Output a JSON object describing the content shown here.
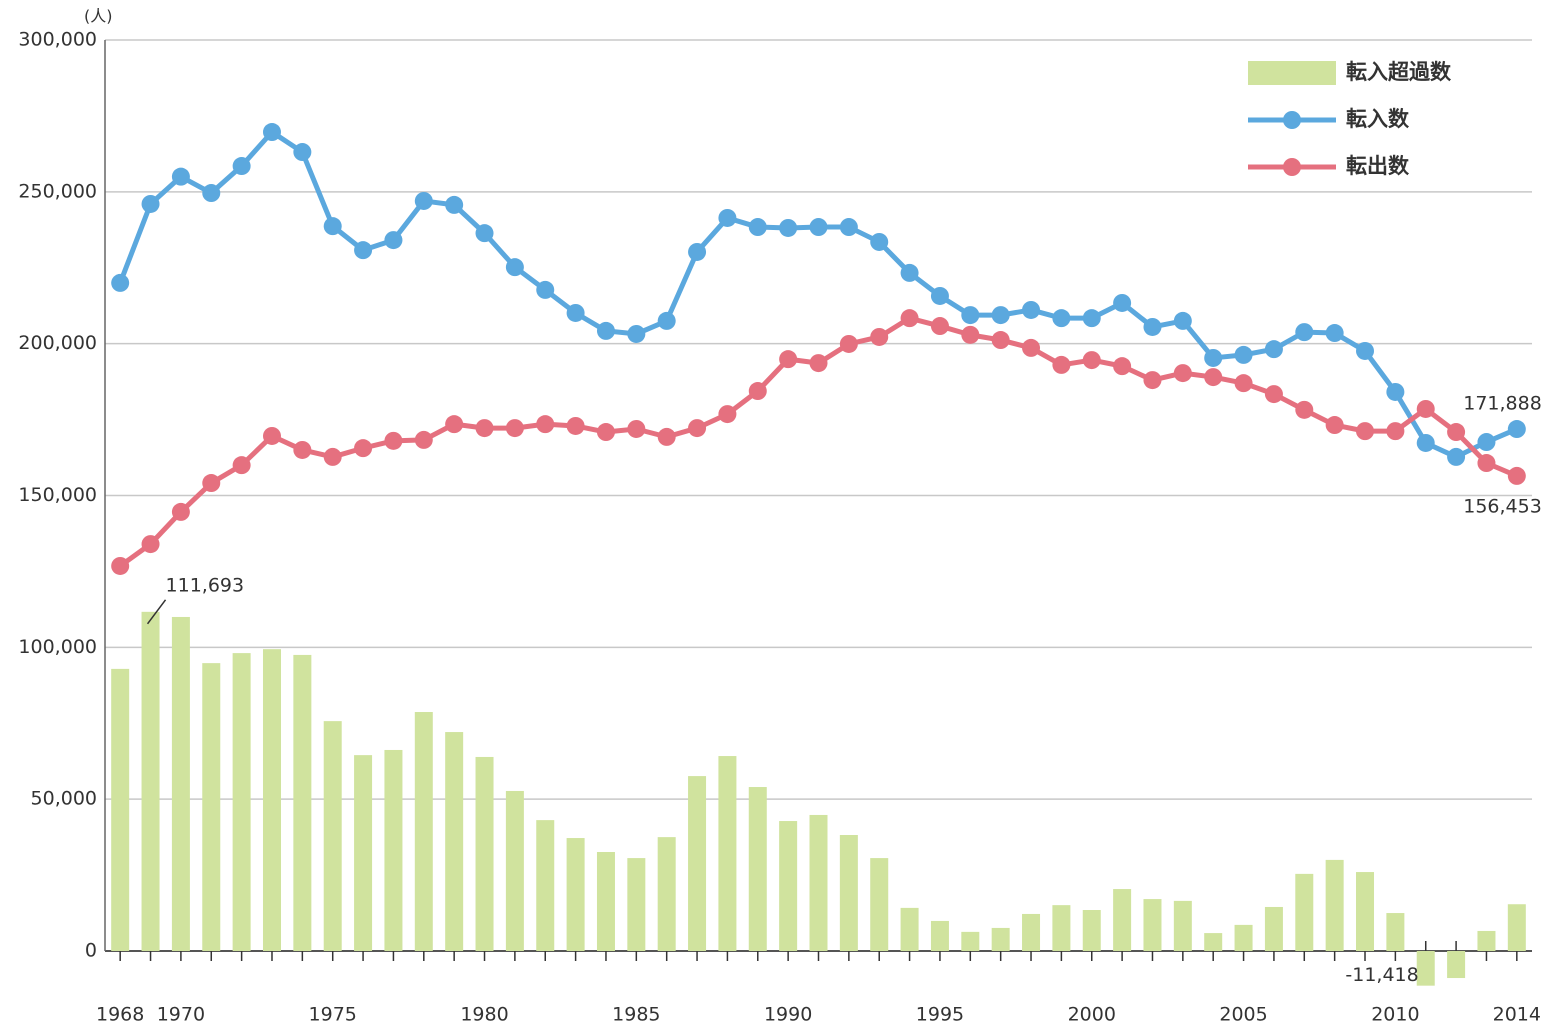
{
  "chart_data": {
    "type": "bar",
    "y_label": "(人)",
    "legend": "upper right",
    "grid": true,
    "x": [
      1968,
      1969,
      1970,
      1971,
      1972,
      1973,
      1974,
      1975,
      1976,
      1977,
      1978,
      1979,
      1980,
      1981,
      1982,
      1983,
      1984,
      1985,
      1986,
      1987,
      1988,
      1989,
      1990,
      1991,
      1992,
      1993,
      1994,
      1995,
      1996,
      1997,
      1998,
      1999,
      2000,
      2001,
      2002,
      2003,
      2004,
      2005,
      2006,
      2007,
      2008,
      2009,
      2010,
      2011,
      2012,
      2013,
      2014
    ],
    "xlim": [
      1967.5,
      2014.5
    ],
    "xticks": [
      1968,
      1970,
      1975,
      1980,
      1985,
      1990,
      1995,
      2000,
      2005,
      2010,
      2014
    ],
    "ylim": [
      0,
      300000
    ],
    "yticks": [
      0,
      {
        "value": 50000,
        "label": "50,000"
      },
      {
        "value": 100000,
        "label": "100,000"
      },
      {
        "value": 150000,
        "label": "150,000"
      },
      {
        "value": 200000,
        "label": "200,000"
      },
      {
        "value": 250000,
        "label": "250,000"
      },
      {
        "value": 300000,
        "label": "300,000"
      }
    ],
    "series": [
      {
        "name": "転入超過数",
        "type": "bar",
        "color": "#d0e39e",
        "values": [
          92900,
          111693,
          110000,
          94800,
          98100,
          99400,
          97500,
          75700,
          64500,
          66200,
          78700,
          72100,
          63900,
          52700,
          43100,
          37200,
          32600,
          30600,
          37500,
          57600,
          64200,
          54000,
          42800,
          44800,
          38200,
          30600,
          14200,
          9900,
          6300,
          7600,
          12200,
          15100,
          13500,
          20400,
          17100,
          16500,
          5900,
          8600,
          14500,
          25400,
          30000,
          26000,
          12500,
          -11418,
          -8900,
          6600,
          15400
        ],
        "value_labels": [
          null,
          "111,693",
          null,
          null,
          null,
          null,
          null,
          null,
          null,
          null,
          null,
          null,
          null,
          null,
          null,
          null,
          null,
          null,
          null,
          null,
          null,
          null,
          null,
          null,
          null,
          null,
          null,
          null,
          null,
          null,
          null,
          null,
          null,
          null,
          null,
          null,
          null,
          null,
          null,
          null,
          null,
          null,
          null,
          "-11,418",
          null,
          null,
          null
        ]
      },
      {
        "name": "転入数",
        "type": "line",
        "color": "#5ba8de",
        "values": [
          220000,
          246000,
          255000,
          249600,
          258500,
          269700,
          263100,
          238700,
          230800,
          234100,
          247000,
          245700,
          236400,
          225200,
          217700,
          210100,
          204200,
          203200,
          207500,
          230200,
          241400,
          238400,
          238100,
          238400,
          238400,
          233500,
          223300,
          215700,
          209400,
          209400,
          211100,
          208400,
          208400,
          213400,
          205500,
          207500,
          195300,
          196300,
          198200,
          203800,
          203500,
          197600,
          184100,
          167300,
          162700,
          167600,
          171888
        ],
        "value_labels": [
          null,
          null,
          null,
          null,
          null,
          null,
          null,
          null,
          null,
          null,
          null,
          null,
          null,
          null,
          null,
          null,
          null,
          null,
          null,
          null,
          null,
          null,
          null,
          null,
          null,
          null,
          null,
          null,
          null,
          null,
          null,
          null,
          null,
          null,
          null,
          null,
          null,
          null,
          null,
          null,
          null,
          null,
          null,
          null,
          null,
          null,
          "171,888"
        ]
      },
      {
        "name": "転出数",
        "type": "line",
        "color": "#e5707f",
        "values": [
          126800,
          134000,
          144600,
          154100,
          160000,
          169600,
          165000,
          162700,
          165600,
          168000,
          168300,
          173500,
          172200,
          172200,
          173500,
          172900,
          170900,
          171900,
          169300,
          172200,
          176800,
          184400,
          194900,
          193600,
          199900,
          202200,
          208400,
          205800,
          202900,
          201200,
          198600,
          193000,
          194600,
          192600,
          188000,
          190300,
          189000,
          187000,
          183400,
          178200,
          173200,
          171200,
          171200,
          178500,
          170900,
          160700,
          156453
        ],
        "value_labels": [
          null,
          null,
          null,
          null,
          null,
          null,
          null,
          null,
          null,
          null,
          null,
          null,
          null,
          null,
          null,
          null,
          null,
          null,
          null,
          null,
          null,
          null,
          null,
          null,
          null,
          null,
          null,
          null,
          null,
          null,
          null,
          null,
          null,
          null,
          null,
          null,
          null,
          null,
          null,
          null,
          null,
          null,
          null,
          null,
          null,
          null,
          "156,453"
        ]
      }
    ]
  }
}
